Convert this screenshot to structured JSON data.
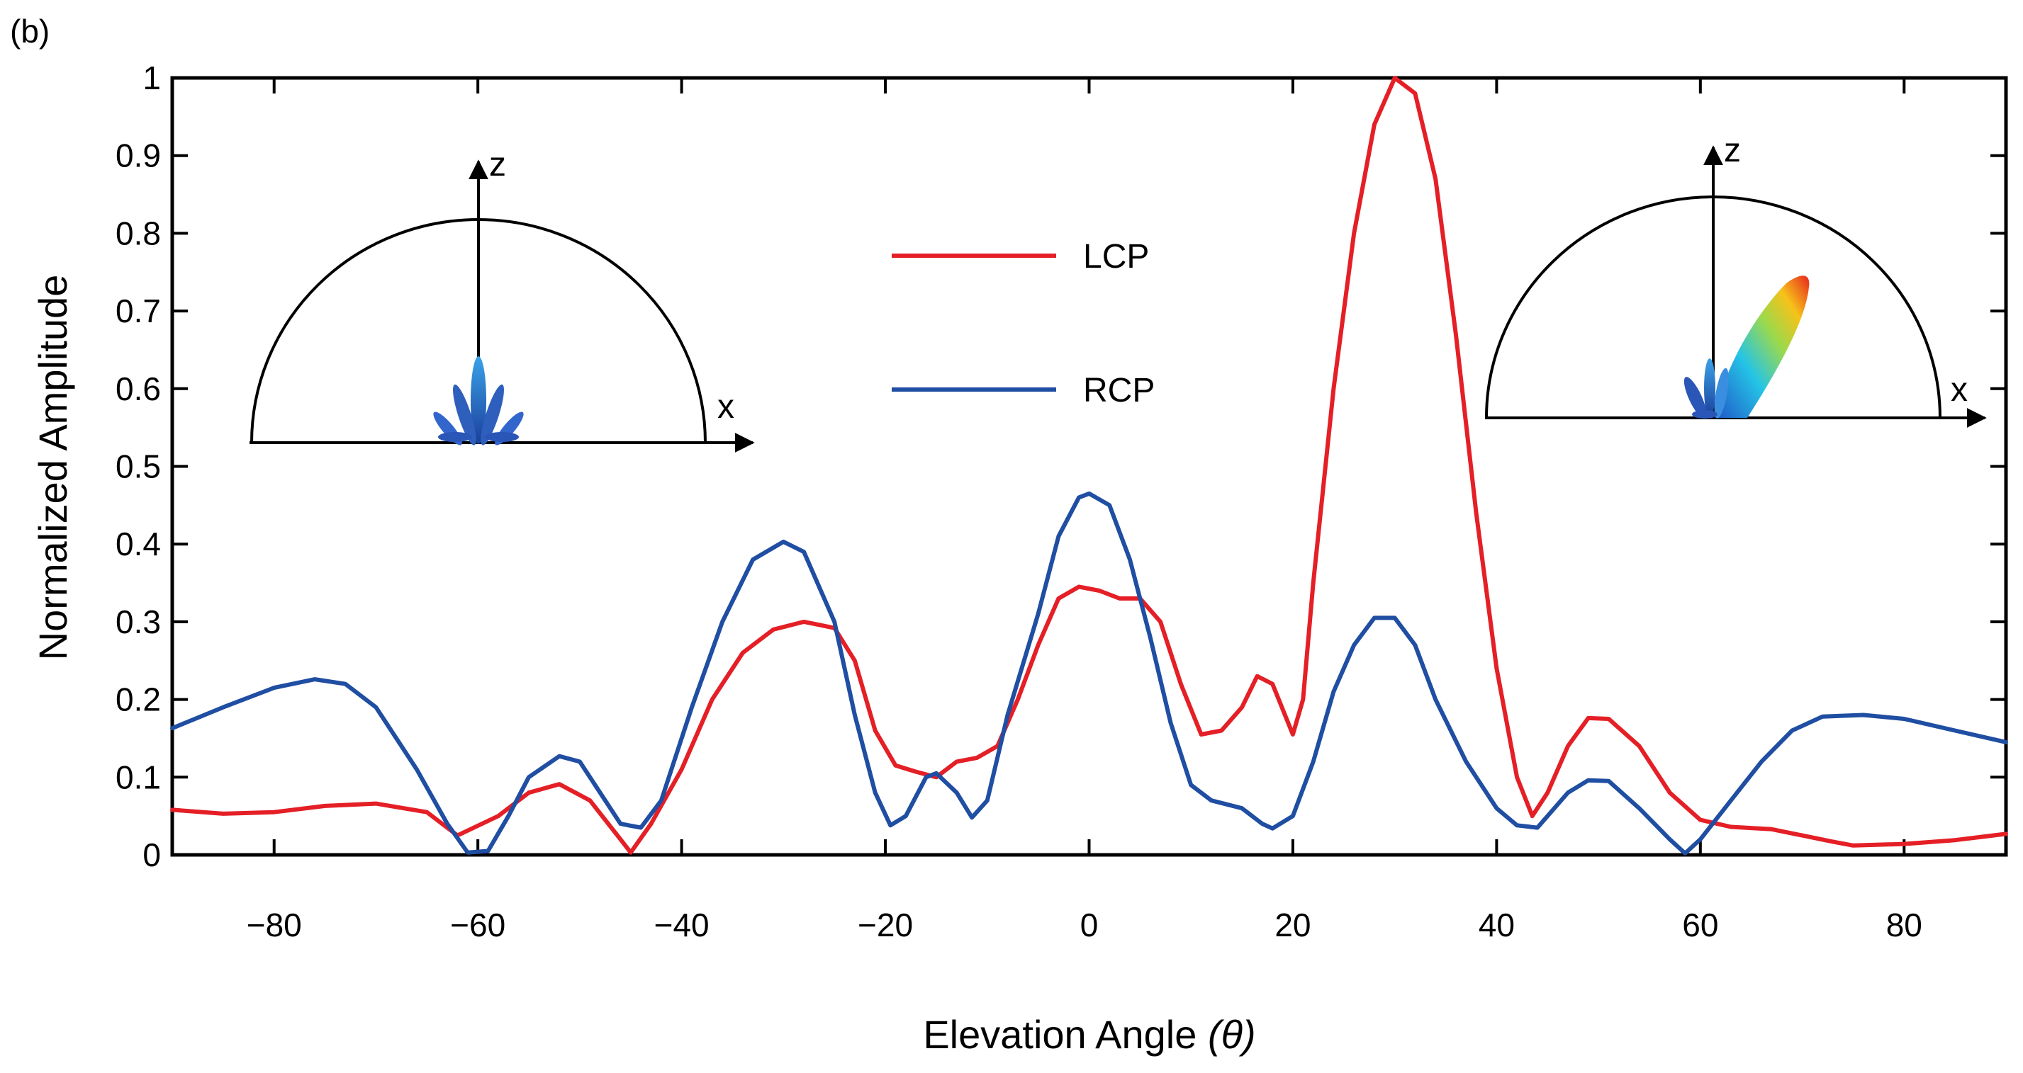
{
  "panel_label": "(b)",
  "colors": {
    "LCP": "#e41f26",
    "RCP": "#1f4ea2",
    "axis": "#000000"
  },
  "chart_data": {
    "type": "line",
    "title": "",
    "xlabel": "Elevation Angle",
    "xlabel_symbol": "(θ)",
    "ylabel": "Normalized Amplitude",
    "xlim": [
      -90,
      90
    ],
    "ylim": [
      0,
      1
    ],
    "xticks": [
      -80,
      -60,
      -40,
      -20,
      0,
      20,
      40,
      60,
      80
    ],
    "xtick_labels": [
      "−80",
      "−60",
      "−40",
      "−20",
      "0",
      "20",
      "40",
      "60",
      "80"
    ],
    "yticks": [
      0,
      0.1,
      0.2,
      0.3,
      0.4,
      0.5,
      0.6,
      0.7,
      0.8,
      0.9,
      1
    ],
    "ytick_labels": [
      "0",
      "0.1",
      "0.2",
      "0.3",
      "0.4",
      "0.5",
      "0.6",
      "0.7",
      "0.8",
      "0.9",
      "1"
    ],
    "legend": {
      "placement": "upper-center",
      "entries": [
        "LCP",
        "RCP"
      ]
    },
    "series": [
      {
        "name": "LCP",
        "points": [
          [
            -90,
            0.058
          ],
          [
            -85,
            0.053
          ],
          [
            -80,
            0.055
          ],
          [
            -75,
            0.063
          ],
          [
            -70,
            0.066
          ],
          [
            -65,
            0.055
          ],
          [
            -62,
            0.025
          ],
          [
            -58,
            0.05
          ],
          [
            -55,
            0.08
          ],
          [
            -52,
            0.091
          ],
          [
            -49,
            0.07
          ],
          [
            -46,
            0.02
          ],
          [
            -45,
            0.003
          ],
          [
            -43,
            0.04
          ],
          [
            -40,
            0.11
          ],
          [
            -37,
            0.2
          ],
          [
            -34,
            0.26
          ],
          [
            -31,
            0.29
          ],
          [
            -28,
            0.3
          ],
          [
            -25,
            0.292
          ],
          [
            -23,
            0.25
          ],
          [
            -21,
            0.16
          ],
          [
            -19,
            0.115
          ],
          [
            -17,
            0.107
          ],
          [
            -15,
            0.1
          ],
          [
            -13,
            0.12
          ],
          [
            -11,
            0.125
          ],
          [
            -9,
            0.14
          ],
          [
            -7,
            0.2
          ],
          [
            -5,
            0.27
          ],
          [
            -3,
            0.33
          ],
          [
            -1,
            0.345
          ],
          [
            1,
            0.34
          ],
          [
            3,
            0.33
          ],
          [
            5,
            0.33
          ],
          [
            7,
            0.3
          ],
          [
            9,
            0.22
          ],
          [
            11,
            0.155
          ],
          [
            13,
            0.16
          ],
          [
            15,
            0.19
          ],
          [
            16.5,
            0.23
          ],
          [
            18,
            0.22
          ],
          [
            20,
            0.155
          ],
          [
            21,
            0.2
          ],
          [
            22,
            0.35
          ],
          [
            24,
            0.6
          ],
          [
            26,
            0.8
          ],
          [
            28,
            0.94
          ],
          [
            30,
            1.0
          ],
          [
            32,
            0.98
          ],
          [
            34,
            0.87
          ],
          [
            36,
            0.67
          ],
          [
            38,
            0.44
          ],
          [
            40,
            0.24
          ],
          [
            42,
            0.1
          ],
          [
            43.5,
            0.05
          ],
          [
            45,
            0.08
          ],
          [
            47,
            0.14
          ],
          [
            49,
            0.176
          ],
          [
            51,
            0.175
          ],
          [
            54,
            0.14
          ],
          [
            57,
            0.08
          ],
          [
            60,
            0.045
          ],
          [
            63,
            0.036
          ],
          [
            67,
            0.033
          ],
          [
            70,
            0.025
          ],
          [
            73,
            0.017
          ],
          [
            75,
            0.012
          ],
          [
            80,
            0.014
          ],
          [
            85,
            0.019
          ],
          [
            90,
            0.027
          ]
        ]
      },
      {
        "name": "RCP",
        "points": [
          [
            -90,
            0.163
          ],
          [
            -85,
            0.19
          ],
          [
            -80,
            0.215
          ],
          [
            -76,
            0.226
          ],
          [
            -73,
            0.22
          ],
          [
            -70,
            0.19
          ],
          [
            -66,
            0.11
          ],
          [
            -63,
            0.04
          ],
          [
            -61,
            0.003
          ],
          [
            -59,
            0.005
          ],
          [
            -57,
            0.05
          ],
          [
            -55,
            0.1
          ],
          [
            -52,
            0.127
          ],
          [
            -50,
            0.12
          ],
          [
            -48,
            0.08
          ],
          [
            -46,
            0.04
          ],
          [
            -44,
            0.035
          ],
          [
            -42,
            0.07
          ],
          [
            -39,
            0.19
          ],
          [
            -36,
            0.3
          ],
          [
            -33,
            0.38
          ],
          [
            -30,
            0.403
          ],
          [
            -28,
            0.39
          ],
          [
            -25,
            0.3
          ],
          [
            -23,
            0.18
          ],
          [
            -21,
            0.08
          ],
          [
            -19.5,
            0.038
          ],
          [
            -18,
            0.05
          ],
          [
            -16,
            0.1
          ],
          [
            -15,
            0.105
          ],
          [
            -13,
            0.08
          ],
          [
            -11.5,
            0.048
          ],
          [
            -10,
            0.07
          ],
          [
            -8,
            0.18
          ],
          [
            -5,
            0.31
          ],
          [
            -3,
            0.41
          ],
          [
            -1,
            0.46
          ],
          [
            0,
            0.465
          ],
          [
            2,
            0.45
          ],
          [
            4,
            0.38
          ],
          [
            6,
            0.28
          ],
          [
            8,
            0.17
          ],
          [
            10,
            0.09
          ],
          [
            12,
            0.07
          ],
          [
            15,
            0.06
          ],
          [
            17,
            0.04
          ],
          [
            18,
            0.034
          ],
          [
            20,
            0.05
          ],
          [
            22,
            0.12
          ],
          [
            24,
            0.21
          ],
          [
            26,
            0.27
          ],
          [
            28,
            0.305
          ],
          [
            30,
            0.305
          ],
          [
            32,
            0.27
          ],
          [
            34,
            0.2
          ],
          [
            37,
            0.12
          ],
          [
            40,
            0.06
          ],
          [
            42,
            0.038
          ],
          [
            44,
            0.035
          ],
          [
            47,
            0.08
          ],
          [
            49,
            0.096
          ],
          [
            51,
            0.095
          ],
          [
            54,
            0.06
          ],
          [
            57,
            0.02
          ],
          [
            58.5,
            0.002
          ],
          [
            60,
            0.02
          ],
          [
            63,
            0.07
          ],
          [
            66,
            0.12
          ],
          [
            69,
            0.16
          ],
          [
            72,
            0.178
          ],
          [
            76,
            0.18
          ],
          [
            80,
            0.175
          ],
          [
            85,
            0.16
          ],
          [
            90,
            0.145
          ]
        ]
      }
    ],
    "insets": [
      {
        "name": "broadside-pattern",
        "axis_labels": {
          "z": "z",
          "x": "x"
        }
      },
      {
        "name": "tilted-pattern",
        "axis_labels": {
          "z": "z",
          "x": "x"
        }
      }
    ]
  }
}
